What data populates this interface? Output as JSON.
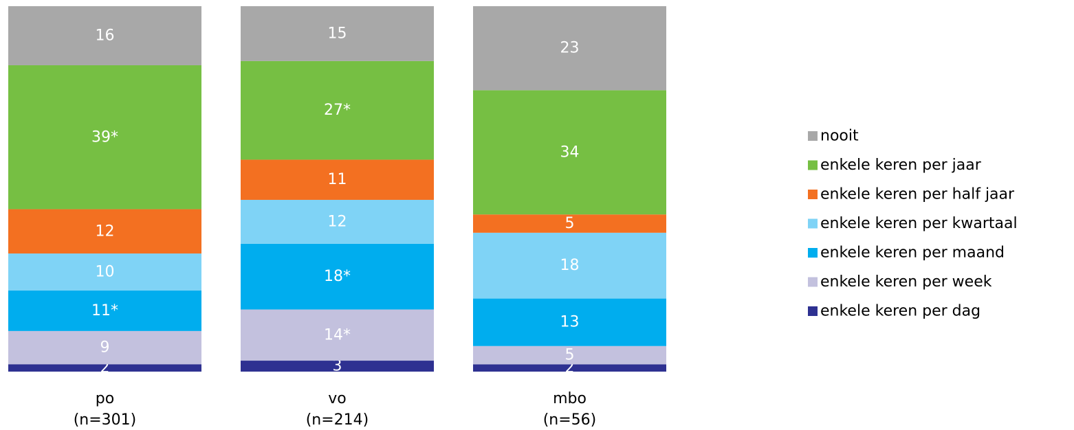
{
  "chart_data": {
    "type": "bar",
    "stacked": true,
    "normalized": true,
    "legend_position": "right",
    "grid": false,
    "categories": [
      "po",
      "vo",
      "mbo"
    ],
    "category_subtitles": [
      "(n=301)",
      "(n=214)",
      "(n=56)"
    ],
    "series": [
      {
        "name": "enkele keren per dag",
        "color": "#2e3191",
        "values": [
          2,
          3,
          2
        ],
        "labels": [
          "2",
          "3",
          "2"
        ]
      },
      {
        "name": "enkele keren per week",
        "color": "#c3c1de",
        "values": [
          9,
          14,
          5
        ],
        "labels": [
          "9",
          "14*",
          "5"
        ]
      },
      {
        "name": "enkele keren per maand",
        "color": "#00adee",
        "values": [
          11,
          18,
          13
        ],
        "labels": [
          "11*",
          "18*",
          "13"
        ]
      },
      {
        "name": "enkele keren per kwartaal",
        "color": "#7fd3f6",
        "values": [
          10,
          12,
          18
        ],
        "labels": [
          "10",
          "12",
          "18"
        ]
      },
      {
        "name": "enkele keren per half jaar",
        "color": "#f37021",
        "values": [
          12,
          11,
          5
        ],
        "labels": [
          "12",
          "11",
          "5"
        ]
      },
      {
        "name": "enkele keren per jaar",
        "color": "#76bf43",
        "values": [
          39,
          27,
          34
        ],
        "labels": [
          "39*",
          "27*",
          "34"
        ]
      },
      {
        "name": "nooit",
        "color": "#a8a8a8",
        "values": [
          16,
          15,
          23
        ],
        "labels": [
          "16",
          "15",
          "23"
        ]
      }
    ],
    "legend_order": [
      "nooit",
      "enkele keren per jaar",
      "enkele keren per half jaar",
      "enkele keren per kwartaal",
      "enkele keren per maand",
      "enkele keren per week",
      "enkele keren per dag"
    ]
  }
}
